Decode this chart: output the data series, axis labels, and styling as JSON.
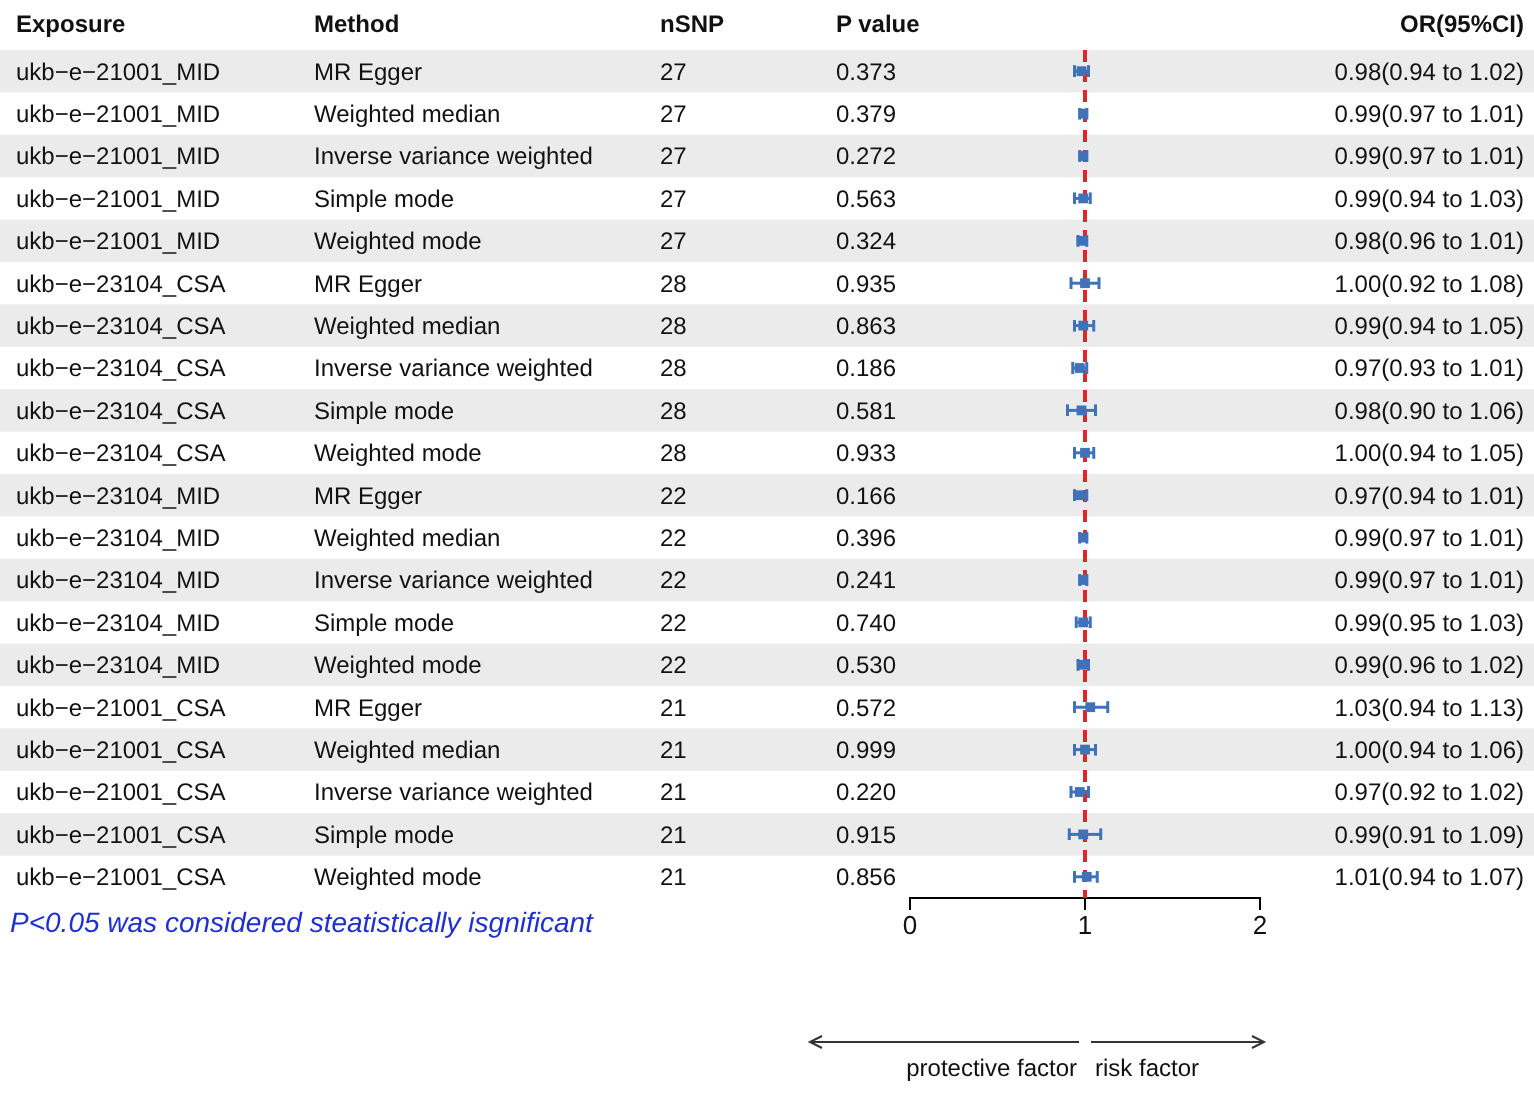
{
  "chart_data": [
    {
      "type": "other",
      "categories": [
        "Exposure",
        "Method",
        "nSNP",
        "P value"
      ],
      "cell_labels": [
        [
          "ukb−e−21001_MID",
          "MR Egger",
          "27",
          "0.373"
        ],
        [
          "ukb−e−21001_MID",
          "Weighted median",
          "27",
          "0.379"
        ],
        [
          "ukb−e−21001_MID",
          "Inverse variance weighted",
          "27",
          "0.272"
        ],
        [
          "ukb−e−21001_MID",
          "Simple mode",
          "27",
          "0.563"
        ],
        [
          "ukb−e−21001_MID",
          "Weighted mode",
          "27",
          "0.324"
        ],
        [
          "ukb−e−23104_CSA",
          "MR Egger",
          "28",
          "0.935"
        ],
        [
          "ukb−e−23104_CSA",
          "Weighted median",
          "28",
          "0.863"
        ],
        [
          "ukb−e−23104_CSA",
          "Inverse variance weighted",
          "28",
          "0.186"
        ],
        [
          "ukb−e−23104_CSA",
          "Simple mode",
          "28",
          "0.581"
        ],
        [
          "ukb−e−23104_CSA",
          "Weighted mode",
          "28",
          "0.933"
        ],
        [
          "ukb−e−23104_MID",
          "MR Egger",
          "22",
          "0.166"
        ],
        [
          "ukb−e−23104_MID",
          "Weighted median",
          "22",
          "0.396"
        ],
        [
          "ukb−e−23104_MID",
          "Inverse variance weighted",
          "22",
          "0.241"
        ],
        [
          "ukb−e−23104_MID",
          "Simple mode",
          "22",
          "0.740"
        ],
        [
          "ukb−e−23104_MID",
          "Weighted mode",
          "22",
          "0.530"
        ],
        [
          "ukb−e−21001_CSA",
          "MR Egger",
          "21",
          "0.572"
        ],
        [
          "ukb−e−21001_CSA",
          "Weighted median",
          "21",
          "0.999"
        ],
        [
          "ukb−e−21001_CSA",
          "Inverse variance weighted",
          "21",
          "0.220"
        ],
        [
          "ukb−e−21001_CSA",
          "Simple mode",
          "21",
          "0.915"
        ],
        [
          "ukb−e−21001_CSA",
          "Weighted mode",
          "21",
          "0.856"
        ]
      ]
    },
    {
      "type": "scatter",
      "orientation": "horizontal",
      "categories": [
        null,
        null,
        null,
        null,
        null,
        null,
        null,
        null,
        null,
        null,
        null,
        null,
        null,
        null,
        null,
        null,
        null,
        null,
        null,
        null
      ],
      "values": [
        0.98,
        0.99,
        0.99,
        0.99,
        0.98,
        1.0,
        0.99,
        0.97,
        0.98,
        1.0,
        0.97,
        0.99,
        0.99,
        0.99,
        0.99,
        1.03,
        1.0,
        0.97,
        0.99,
        1.01
      ],
      "errors": [
        [
          0.94,
          1.02
        ],
        [
          0.97,
          1.01
        ],
        [
          0.97,
          1.01
        ],
        [
          0.94,
          1.03
        ],
        [
          0.96,
          1.01
        ],
        [
          0.92,
          1.08
        ],
        [
          0.94,
          1.05
        ],
        [
          0.93,
          1.01
        ],
        [
          0.9,
          1.06
        ],
        [
          0.94,
          1.05
        ],
        [
          0.94,
          1.01
        ],
        [
          0.97,
          1.01
        ],
        [
          0.97,
          1.01
        ],
        [
          0.95,
          1.03
        ],
        [
          0.96,
          1.02
        ],
        [
          0.94,
          1.13
        ],
        [
          0.94,
          1.06
        ],
        [
          0.92,
          1.02
        ],
        [
          0.91,
          1.09
        ],
        [
          0.94,
          1.07
        ]
      ],
      "value_labels": [
        "0.98(0.94 to 1.02)",
        "0.99(0.97 to 1.01)",
        "0.99(0.97 to 1.01)",
        "0.99(0.94 to 1.03)",
        "0.98(0.96 to 1.01)",
        "1.00(0.92 to 1.08)",
        "0.99(0.94 to 1.05)",
        "0.97(0.93 to 1.01)",
        "0.98(0.90 to 1.06)",
        "1.00(0.94 to 1.05)",
        "0.97(0.94 to 1.01)",
        "0.99(0.97 to 1.01)",
        "0.99(0.97 to 1.01)",
        "0.99(0.95 to 1.03)",
        "0.99(0.96 to 1.02)",
        "1.03(0.94 to 1.13)",
        "1.00(0.94 to 1.06)",
        "0.97(0.92 to 1.02)",
        "0.99(0.91 to 1.09)",
        "1.01(0.94 to 1.07)"
      ],
      "y2label": "OR(95%CI)",
      "color": "#3f72b8",
      "marker": "square",
      "xlim": [
        0,
        2
      ],
      "xticks": [
        0,
        1,
        2
      ],
      "ref_lines": [
        {
          "axis": "x",
          "value": 1,
          "color": "#e0262b",
          "line_style": "dashed"
        }
      ],
      "annotations": [
        "P<0.05 was considered steatistically isgnificant",
        "protective factor",
        "risk factor"
      ]
    }
  ]
}
